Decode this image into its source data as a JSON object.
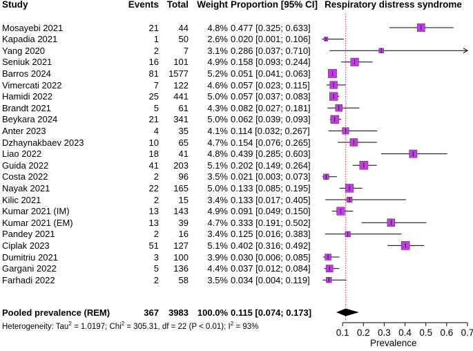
{
  "headers": {
    "study": "Study",
    "events": "Events",
    "total": "Total",
    "weight": "Weight",
    "ci": "Proportion [95% CI]",
    "plot": "Respiratory distress syndrome"
  },
  "rows": [
    {
      "study": "Mosayebi 2021",
      "events": "21",
      "total": "44",
      "weight": "4.8%",
      "ci": "0.477 [0.325; 0.633]",
      "est": 0.477,
      "lo": 0.325,
      "hi": 0.633,
      "w": 4.8
    },
    {
      "study": "Kapadia 2021",
      "events": "1",
      "total": "50",
      "weight": "2.6%",
      "ci": "0.020 [0.001; 0.106]",
      "est": 0.02,
      "lo": 0.001,
      "hi": 0.106,
      "w": 2.6
    },
    {
      "study": "Yang 2020",
      "events": "2",
      "total": "7",
      "weight": "3.1%",
      "ci": "0.286 [0.037; 0.710]",
      "est": 0.286,
      "lo": 0.037,
      "hi": 0.71,
      "w": 3.1
    },
    {
      "study": "Seniuk 2021",
      "events": "16",
      "total": "101",
      "weight": "4.9%",
      "ci": "0.158 [0.093; 0.244]",
      "est": 0.158,
      "lo": 0.093,
      "hi": 0.244,
      "w": 4.9
    },
    {
      "study": "Barros 2024",
      "events": "81",
      "total": "1577",
      "weight": "5.2%",
      "ci": "0.051 [0.041; 0.063]",
      "est": 0.051,
      "lo": 0.041,
      "hi": 0.063,
      "w": 5.2
    },
    {
      "study": "Vimercati 2022",
      "events": "7",
      "total": "122",
      "weight": "4.6%",
      "ci": "0.057 [0.023; 0.115]",
      "est": 0.057,
      "lo": 0.023,
      "hi": 0.115,
      "w": 4.6
    },
    {
      "study": "Hamidi 2022",
      "events": "25",
      "total": "441",
      "weight": "5.0%",
      "ci": "0.057 [0.037; 0.083]",
      "est": 0.057,
      "lo": 0.037,
      "hi": 0.083,
      "w": 5.0
    },
    {
      "study": "Brandt 2021",
      "events": "5",
      "total": "61",
      "weight": "4.3%",
      "ci": "0.082 [0.027; 0.181]",
      "est": 0.082,
      "lo": 0.027,
      "hi": 0.181,
      "w": 4.3
    },
    {
      "study": "Beykara 2024",
      "events": "21",
      "total": "341",
      "weight": "5.0%",
      "ci": "0.062 [0.039; 0.093]",
      "est": 0.062,
      "lo": 0.039,
      "hi": 0.093,
      "w": 5.0
    },
    {
      "study": "Anter 2023",
      "events": "4",
      "total": "35",
      "weight": "4.1%",
      "ci": "0.114 [0.032; 0.267]",
      "est": 0.114,
      "lo": 0.032,
      "hi": 0.267,
      "w": 4.1
    },
    {
      "study": "Dzhaynakbaev 2023",
      "events": "10",
      "total": "65",
      "weight": "4.7%",
      "ci": "0.154 [0.076; 0.265]",
      "est": 0.154,
      "lo": 0.076,
      "hi": 0.265,
      "w": 4.7
    },
    {
      "study": "Liao 2022",
      "events": "18",
      "total": "41",
      "weight": "4.8%",
      "ci": "0.439 [0.285; 0.603]",
      "est": 0.439,
      "lo": 0.285,
      "hi": 0.603,
      "w": 4.8
    },
    {
      "study": "Guida 2022",
      "events": "41",
      "total": "203",
      "weight": "5.1%",
      "ci": "0.202 [0.149; 0.264]",
      "est": 0.202,
      "lo": 0.149,
      "hi": 0.264,
      "w": 5.1
    },
    {
      "study": "Costa 2022",
      "events": "2",
      "total": "96",
      "weight": "3.5%",
      "ci": "0.021 [0.003; 0.073]",
      "est": 0.021,
      "lo": 0.003,
      "hi": 0.073,
      "w": 3.5
    },
    {
      "study": "Nayak 2021",
      "events": "22",
      "total": "165",
      "weight": "5.0%",
      "ci": "0.133 [0.085; 0.195]",
      "est": 0.133,
      "lo": 0.085,
      "hi": 0.195,
      "w": 5.0
    },
    {
      "study": "Kilic 2021",
      "events": "2",
      "total": "15",
      "weight": "3.4%",
      "ci": "0.133 [0.017; 0.405]",
      "est": 0.133,
      "lo": 0.017,
      "hi": 0.405,
      "w": 3.4
    },
    {
      "study": "Kumar 2021 (IM)",
      "events": "13",
      "total": "143",
      "weight": "4.9%",
      "ci": "0.091 [0.049; 0.150]",
      "est": 0.091,
      "lo": 0.049,
      "hi": 0.15,
      "w": 4.9
    },
    {
      "study": "Kumar 2021 (EM)",
      "events": "13",
      "total": "39",
      "weight": "4.7%",
      "ci": "0.333 [0.191; 0.502]",
      "est": 0.333,
      "lo": 0.191,
      "hi": 0.502,
      "w": 4.7
    },
    {
      "study": "Pandey 2021",
      "events": "2",
      "total": "16",
      "weight": "3.4%",
      "ci": "0.125 [0.016; 0.383]",
      "est": 0.125,
      "lo": 0.016,
      "hi": 0.383,
      "w": 3.4
    },
    {
      "study": "Ciplak 2023",
      "events": "51",
      "total": "127",
      "weight": "5.1%",
      "ci": "0.402 [0.316; 0.492]",
      "est": 0.402,
      "lo": 0.316,
      "hi": 0.492,
      "w": 5.1
    },
    {
      "study": "Dumitriu 2021",
      "events": "3",
      "total": "100",
      "weight": "3.9%",
      "ci": "0.030 [0.006; 0.085]",
      "est": 0.03,
      "lo": 0.006,
      "hi": 0.085,
      "w": 3.9
    },
    {
      "study": "Gargani 2022",
      "events": "5",
      "total": "136",
      "weight": "4.4%",
      "ci": "0.037 [0.012; 0.084]",
      "est": 0.037,
      "lo": 0.012,
      "hi": 0.084,
      "w": 4.4
    },
    {
      "study": "Farhadi 2022",
      "events": "2",
      "total": "58",
      "weight": "3.5%",
      "ci": "0.034 [0.004; 0.119]",
      "est": 0.034,
      "lo": 0.004,
      "hi": 0.119,
      "w": 3.5
    }
  ],
  "pooled": {
    "label": "Pooled prevalence  (REM)",
    "events": "367",
    "total": "3983",
    "weight": "100.0%",
    "ci": "0.115 [0.074; 0.173]",
    "est": 0.115,
    "lo": 0.074,
    "hi": 0.173
  },
  "heterogeneity": {
    "prefix": "Heterogeneity: Tau",
    "tau_val": " = 1.0197; Chi",
    "chi_val": " = 305.31, df = 22 (P < 0.01); I",
    "i_val": " = 93%",
    "sup": "2"
  },
  "colors": {
    "box": "#bf3fdc",
    "box_edge": "#7a1a8e",
    "refline": "#d62728"
  },
  "chart_data": {
    "type": "forest",
    "title": "Respiratory distress syndrome",
    "xlabel": "Prevalence",
    "ylabel": "",
    "xlim": [
      0.0,
      0.7
    ],
    "ticks": [
      "0.1",
      "0.2",
      "0.3",
      "0.4",
      "0.5",
      "0.6",
      "0.7"
    ],
    "tick_values": [
      0.1,
      0.2,
      0.3,
      0.4,
      0.5,
      0.6,
      0.7
    ],
    "reference_line": 0.115,
    "reference_style": "dotted"
  }
}
